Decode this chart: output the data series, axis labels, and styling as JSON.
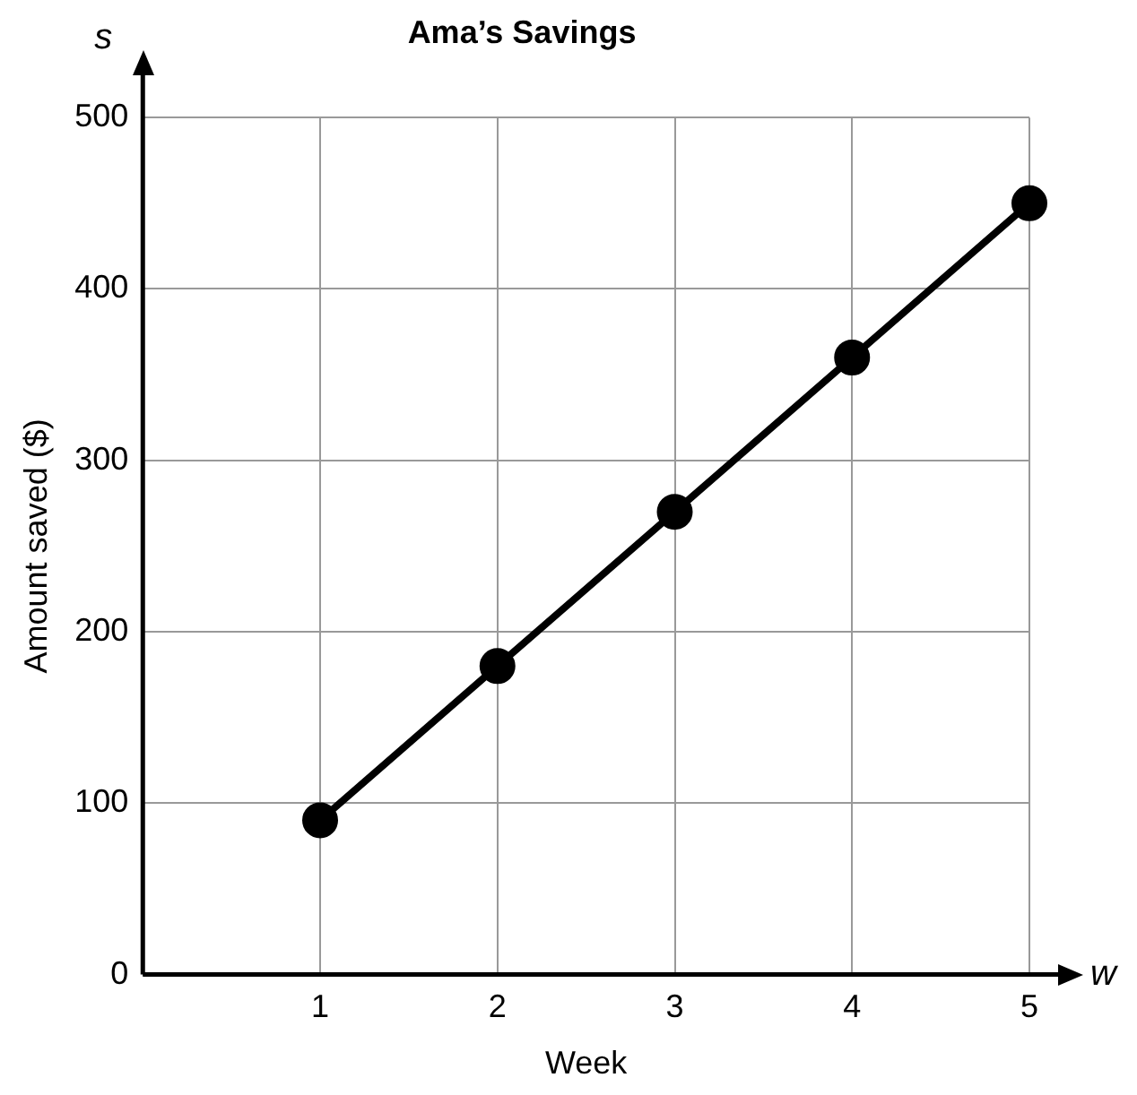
{
  "chart_data": {
    "type": "line",
    "title": "Ama’s Savings",
    "xlabel": "Week",
    "ylabel": "Amount saved ($)",
    "annotations": [
      "s",
      "w"
    ],
    "x": [
      1,
      2,
      3,
      4,
      5
    ],
    "series": [
      {
        "color": "#000000",
        "values": [
          90,
          180,
          270,
          360,
          450
        ]
      }
    ],
    "xlim": [
      0,
      5
    ],
    "xticks": [
      1,
      2,
      3,
      4,
      5
    ],
    "ylim": [
      0,
      500
    ],
    "yticks": [
      0,
      100,
      200,
      300,
      400,
      500
    ],
    "grid": true,
    "legend": false,
    "marker": "circle",
    "line_style": "solid"
  }
}
